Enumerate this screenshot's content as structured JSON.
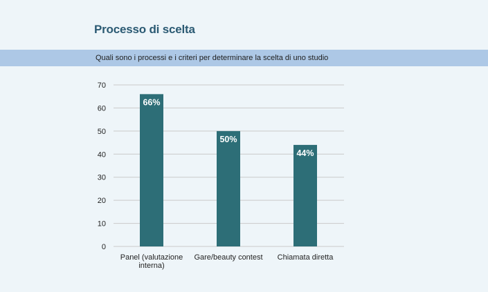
{
  "title": "Processo di scelta",
  "subtitle": "Quali sono i processi e i criteri per determinare la scelta di uno studio",
  "colors": {
    "background": "#eef5f9",
    "banner": "#adc8e6",
    "title": "#2b5a73",
    "bar": "#2d6e77",
    "gridline": "#c9c9c9",
    "data_label": "#ffffff"
  },
  "chart_data": {
    "type": "bar",
    "title": "",
    "xlabel": "",
    "ylabel": "",
    "categories": [
      "Panel (valutazione interna)",
      "Gare/beauty contest",
      "Chiamata diretta"
    ],
    "category_lines": [
      [
        "Panel (valutazione",
        "interna)"
      ],
      [
        "Gare/beauty contest"
      ],
      [
        "Chiamata diretta"
      ]
    ],
    "values": [
      66,
      50,
      44
    ],
    "data_labels": [
      "66%",
      "50%",
      "44%"
    ],
    "ylim": [
      0,
      70
    ],
    "yticks": [
      0,
      10,
      20,
      30,
      40,
      50,
      60,
      70
    ],
    "grid": true,
    "legend": "none"
  }
}
